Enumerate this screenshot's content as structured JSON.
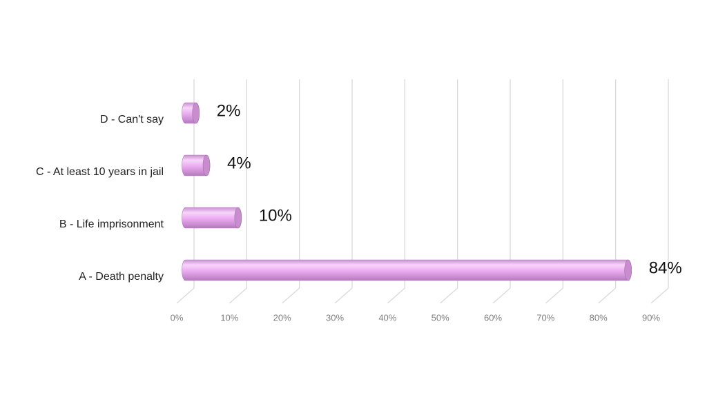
{
  "chart_data": {
    "type": "bar",
    "orientation": "horizontal",
    "style": "3d-cylinder",
    "categories": [
      "A - Death penalty",
      "B - Life imprisonment",
      "C - At least 10 years in jail",
      "D - Can't say"
    ],
    "values": [
      84,
      10,
      4,
      2
    ],
    "value_labels": [
      "84%",
      "10%",
      "4%",
      "2%"
    ],
    "color": "#e9aaee",
    "xlim": [
      0,
      90
    ],
    "xticks": [
      {
        "value": 0,
        "label": "0%"
      },
      {
        "value": 10,
        "label": "10%"
      },
      {
        "value": 20,
        "label": "20%"
      },
      {
        "value": 30,
        "label": "30%"
      },
      {
        "value": 40,
        "label": "40%"
      },
      {
        "value": 50,
        "label": "50%"
      },
      {
        "value": 60,
        "label": "60%"
      },
      {
        "value": 70,
        "label": "70%"
      },
      {
        "value": 80,
        "label": "80%"
      },
      {
        "value": 90,
        "label": "90%"
      }
    ],
    "grid": true
  }
}
